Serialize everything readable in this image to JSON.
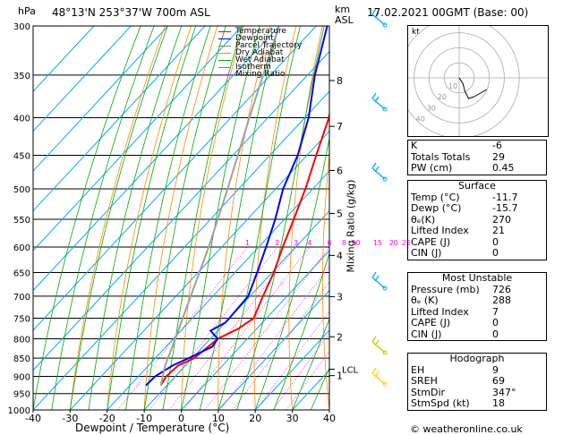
{
  "header": {
    "unit_hpa": "hPa",
    "location": "48°13'N  253°37'W  700m  ASL",
    "unit_km": "km",
    "unit_asl": "ASL",
    "datetime": "17.02.2021  00GMT  (Base: 00)"
  },
  "legend": [
    {
      "label": "Temperature",
      "color": "#ff0000"
    },
    {
      "label": "Dewpoint",
      "color": "#0000ff"
    },
    {
      "label": "Parcel Trajectory",
      "color": "#808080"
    },
    {
      "label": "Dry Adiabat",
      "color": "#ff8c00"
    },
    {
      "label": "Wet Adiabat",
      "color": "#00aa00"
    },
    {
      "label": "Isotherm",
      "color": "#00aaff"
    },
    {
      "label": "Mixing Ratio",
      "color": "#ff00ff"
    }
  ],
  "axes": {
    "xlabel": "Dewpoint / Temperature (°C)",
    "ylabel_right": "Mixing Ratio (g/kg)",
    "pressure_ticks": [
      "300",
      "350",
      "400",
      "450",
      "500",
      "550",
      "600",
      "650",
      "700",
      "750",
      "800",
      "850",
      "900",
      "950",
      "1000"
    ],
    "temp_ticks": [
      "-40",
      "-30",
      "-20",
      "-10",
      "0",
      "10",
      "20",
      "30",
      "40"
    ],
    "km_ticks": [
      "8",
      "7",
      "6",
      "5",
      "4",
      "3",
      "2",
      "1"
    ],
    "lcl_label": "LCL",
    "mixing_ratio_labels": [
      "1",
      "2",
      "3",
      "4",
      "6",
      "8",
      "10",
      "15",
      "20",
      "25"
    ]
  },
  "chart_data": {
    "type": "line",
    "title": "",
    "xlabel": "Dewpoint / Temperature (°C)",
    "ylabel": "hPa",
    "xlim": [
      -40,
      40
    ],
    "ylim": [
      1000,
      300
    ],
    "pressure_levels": [
      300,
      350,
      400,
      450,
      500,
      550,
      600,
      650,
      700,
      750,
      800,
      850,
      900,
      950,
      1000
    ],
    "series": [
      {
        "name": "Temperature",
        "points": [
          [
            926,
            -11.7
          ],
          [
            900,
            -12.5
          ],
          [
            870,
            -12
          ],
          [
            850,
            -9.5
          ],
          [
            800,
            -8
          ],
          [
            775,
            -5
          ],
          [
            750,
            -3.5
          ],
          [
            700,
            -6.5
          ],
          [
            650,
            -9.5
          ],
          [
            600,
            -13.5
          ],
          [
            550,
            -17.5
          ],
          [
            500,
            -22
          ],
          [
            450,
            -27.5
          ],
          [
            400,
            -33.5
          ],
          [
            350,
            -42
          ],
          [
            300,
            -50.5
          ]
        ]
      },
      {
        "name": "Dewpoint",
        "points": [
          [
            926,
            -15.7
          ],
          [
            900,
            -15.5
          ],
          [
            870,
            -13.5
          ],
          [
            850,
            -11
          ],
          [
            820,
            -7.5
          ],
          [
            800,
            -8
          ],
          [
            780,
            -12
          ],
          [
            760,
            -10
          ],
          [
            700,
            -10.5
          ],
          [
            650,
            -14
          ],
          [
            600,
            -18
          ],
          [
            550,
            -22.5
          ],
          [
            500,
            -28
          ],
          [
            450,
            -32.5
          ],
          [
            400,
            -39
          ],
          [
            350,
            -48
          ],
          [
            300,
            -57
          ]
        ]
      },
      {
        "name": "Parcel Trajectory",
        "points": [
          [
            926,
            -11.7
          ],
          [
            870,
            -15.5
          ],
          [
            800,
            -19.5
          ],
          [
            700,
            -26
          ],
          [
            600,
            -33.5
          ],
          [
            500,
            -43
          ],
          [
            400,
            -55
          ],
          [
            300,
            -70
          ]
        ]
      }
    ],
    "hodograph": {
      "unit": "kt",
      "ring_labels": [
        "10",
        "20",
        "30",
        "40"
      ],
      "points_kt": [
        [
          0,
          0
        ],
        [
          2,
          -3
        ],
        [
          3,
          -7
        ],
        [
          5,
          -11
        ],
        [
          8,
          -10
        ]
      ]
    },
    "wind_barbs_km": [
      "8.5",
      "7",
      "5",
      "3",
      "1.5",
      "0.5"
    ]
  },
  "indices": {
    "main": [
      {
        "label": "K",
        "value": "-6"
      },
      {
        "label": "Totals Totals",
        "value": "29"
      },
      {
        "label": "PW (cm)",
        "value": "0.45"
      }
    ],
    "surface": {
      "title": "Surface",
      "rows": [
        {
          "label": "Temp (°C)",
          "value": "-11.7"
        },
        {
          "label": "Dewp (°C)",
          "value": "-15.7"
        },
        {
          "label": "θₑ(K)",
          "value": "270"
        },
        {
          "label": "Lifted Index",
          "value": "21"
        },
        {
          "label": "CAPE (J)",
          "value": "0"
        },
        {
          "label": "CIN (J)",
          "value": "0"
        }
      ]
    },
    "unstable": {
      "title": "Most Unstable",
      "rows": [
        {
          "label": "Pressure (mb)",
          "value": "726"
        },
        {
          "label": "θₑ (K)",
          "value": "288"
        },
        {
          "label": "Lifted Index",
          "value": "7"
        },
        {
          "label": "CAPE (J)",
          "value": "0"
        },
        {
          "label": "CIN (J)",
          "value": "0"
        }
      ]
    },
    "hodograph": {
      "title": "Hodograph",
      "rows": [
        {
          "label": "EH",
          "value": "9"
        },
        {
          "label": "SREH",
          "value": "69"
        },
        {
          "label": "StmDir",
          "value": "347°"
        },
        {
          "label": "StmSpd (kt)",
          "value": "18"
        }
      ]
    }
  },
  "footer": "© weatheronline.co.uk"
}
